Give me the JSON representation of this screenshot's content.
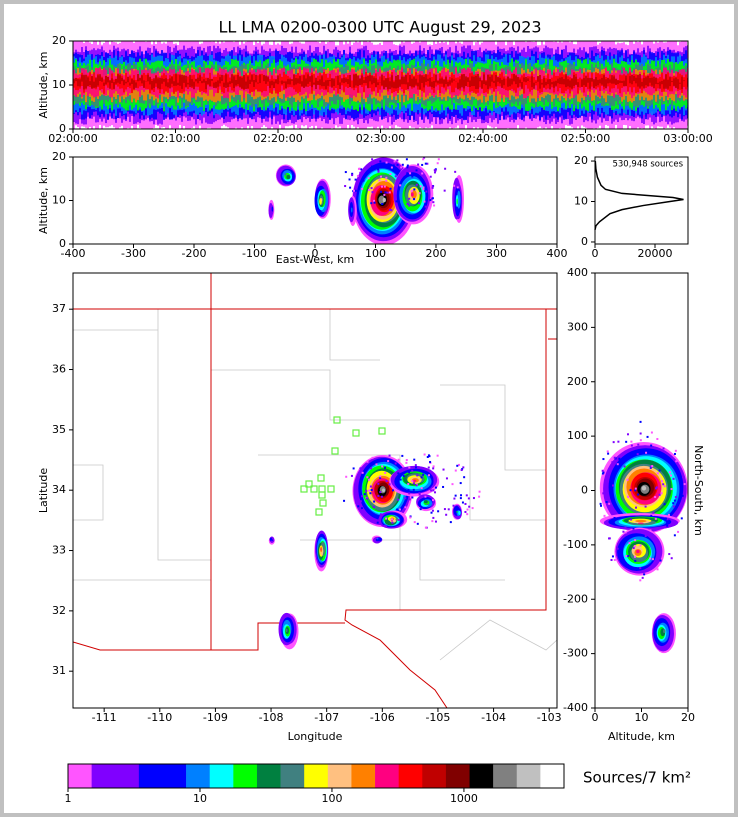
{
  "chart_data": [
    {
      "type": "heatmap",
      "title": "LL LMA 0200-0300 UTC August 29, 2023",
      "ylabel": "Altitude, km",
      "xlim": [
        0,
        60
      ],
      "xticks": [
        {
          "value": 0,
          "label": "02:00:00"
        },
        {
          "value": 10,
          "label": "02:10:00"
        },
        {
          "value": 20,
          "label": "02:20:00"
        },
        {
          "value": 30,
          "label": "02:30:00"
        },
        {
          "value": 40,
          "label": "02:40:00"
        },
        {
          "value": 50,
          "label": "02:50:00"
        },
        {
          "value": 60,
          "label": "03:00:00"
        }
      ],
      "ylim": [
        0,
        20
      ],
      "yticks": [
        0,
        10,
        20
      ]
    },
    {
      "type": "heatmap",
      "xlabel": "East-West, km",
      "ylabel": "Altitude, km",
      "xlim": [
        -400,
        400
      ],
      "xticks": [
        -400,
        -300,
        -200,
        -100,
        0,
        100,
        200,
        300,
        400
      ],
      "ylim": [
        0,
        20
      ],
      "yticks": [
        0,
        10,
        20
      ]
    },
    {
      "type": "line",
      "annotation": "530,948 sources",
      "color": "#000000",
      "x": [
        0,
        300,
        1500,
        5000,
        9000,
        16000,
        25000,
        29500,
        26000,
        9000,
        3500,
        2000,
        800,
        300,
        100
      ],
      "y": [
        3,
        4,
        5,
        7,
        8,
        9,
        10,
        10.5,
        11,
        12,
        13,
        14,
        16,
        18,
        20
      ],
      "xlim": [
        0,
        31000
      ],
      "xticks": [
        0,
        20000
      ],
      "ylim": [
        -0.5,
        21
      ],
      "yticks": [
        0,
        10,
        20
      ]
    },
    {
      "type": "heatmap",
      "xlabel": "Longitude",
      "ylabel": "Latitude",
      "xlim": [
        -111.56,
        -102.86
      ],
      "xticks": [
        -111,
        -110,
        -109,
        -108,
        -107,
        -106,
        -105,
        -104,
        -103
      ],
      "ylim": [
        30.39,
        37.6
      ],
      "yticks": [
        31,
        32,
        33,
        34,
        35,
        36,
        37
      ]
    },
    {
      "type": "heatmap",
      "xlabel": "Altitude, km",
      "ylabel": "North-South, km",
      "xlim": [
        0,
        20
      ],
      "xticks": [
        0,
        10,
        20
      ],
      "ylim": [
        -400,
        400
      ],
      "yticks": [
        -400,
        -300,
        -200,
        -100,
        0,
        100,
        200,
        300,
        400
      ]
    },
    {
      "type": "colorbar",
      "label": "Sources/7 km²",
      "log_scale": true,
      "colors": [
        "#ff55ff",
        "#8000ff",
        "#8000ff",
        "#0000ff",
        "#0000ff",
        "#0080ff",
        "#00ffff",
        "#00ff00",
        "#008040",
        "#408080",
        "#ffff00",
        "#ffc080",
        "#ff8000",
        "#ff0080",
        "#ff0000",
        "#c00000",
        "#800000",
        "#000000",
        "#808080",
        "#c0c0c0",
        "#ffffff"
      ],
      "xlim": [
        1,
        5730
      ],
      "xticks": [
        1,
        10,
        100,
        1000
      ]
    }
  ]
}
